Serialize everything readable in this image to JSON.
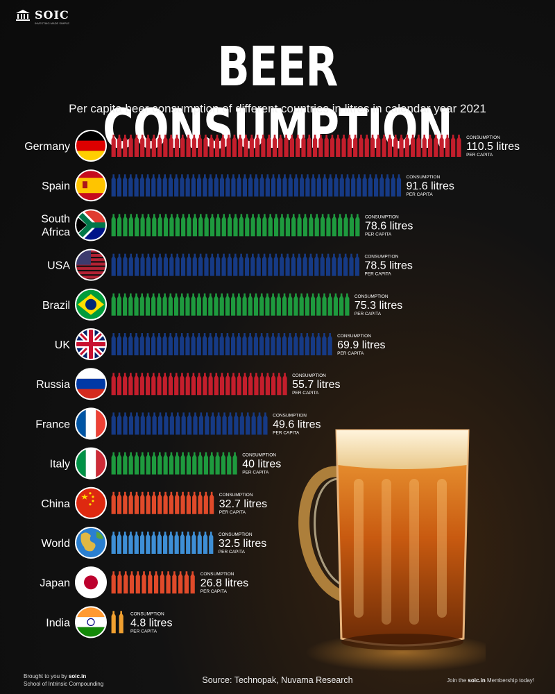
{
  "brand": {
    "name": "SOIC",
    "tagline": "INVESTING MADE SIMPLE"
  },
  "title": "BEER CONSUMPTION",
  "subtitle": "Per capita beer consumption of different countries in litres in calendar year 2021",
  "colors": {
    "red": "#c41e2c",
    "blue": "#163a85",
    "green": "#1e9a3e",
    "orange_red": "#e04a2a",
    "light_blue": "#3e8fd6",
    "orange": "#f0a030"
  },
  "chart_data": {
    "type": "bar",
    "title": "BEER CONSUMPTION",
    "subtitle": "Per capita beer consumption of different countries in litres in calendar year 2021",
    "unit": "litres",
    "value_prefix": "CONSUMPTION",
    "value_suffix": "PER CAPITA",
    "categories": [
      "Germany",
      "Spain",
      "South Africa",
      "USA",
      "Brazil",
      "UK",
      "Russia",
      "France",
      "Italy",
      "China",
      "World",
      "Japan",
      "India"
    ],
    "values": [
      110.5,
      91.6,
      78.6,
      78.5,
      75.3,
      69.9,
      55.7,
      49.6,
      40,
      32.7,
      32.5,
      26.8,
      4.8
    ],
    "value_labels": [
      "110.5 litres",
      "91.6 litres",
      "78.6 litres",
      "78.5 litres",
      "75.3 litres",
      "69.9 litres",
      "55.7 litres",
      "49.6 litres",
      "40 litres",
      "32.7 litres",
      "32.5 litres",
      "26.8 litres",
      "4.8 litres"
    ],
    "bar_colors": [
      "red",
      "blue",
      "green",
      "blue",
      "green",
      "blue",
      "red",
      "blue",
      "green",
      "orange_red",
      "light_blue",
      "orange_red",
      "orange"
    ],
    "flags": [
      "germany-flag",
      "spain-flag",
      "south-africa-flag",
      "usa-flag",
      "brazil-flag",
      "uk-flag",
      "russia-flag",
      "france-flag",
      "italy-flag",
      "china-flag",
      "world-globe",
      "japan-flag",
      "india-flag"
    ],
    "mark": "beer-bottle-icon",
    "legend": "none",
    "grid": false
  },
  "footer": {
    "brought_prefix": "Brought to you by",
    "brought_site": "soic.in",
    "school": "School of Intrinsic Compounding",
    "source": "Source: Technopak, Nuvama Research",
    "join_prefix": "Join the",
    "join_site": "soic.in",
    "join_suffix": "Membership today!"
  }
}
